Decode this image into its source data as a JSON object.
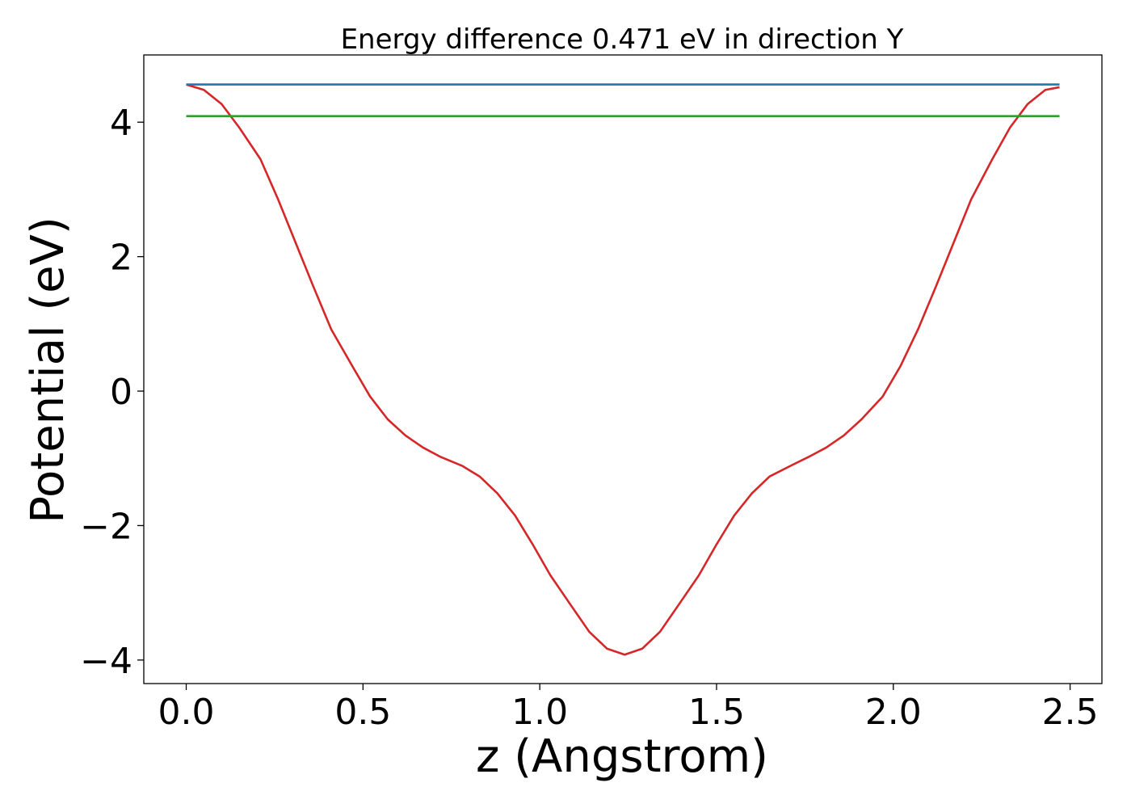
{
  "chart_data": {
    "type": "line",
    "title": "Energy difference 0.471 eV in direction Y",
    "xlabel": "z (Angstrom)",
    "ylabel": "Potential (eV)",
    "xlim": [
      -0.12,
      2.59
    ],
    "ylim": [
      -4.35,
      5.0
    ],
    "xticks": [
      0.0,
      0.5,
      1.0,
      1.5,
      2.0,
      2.5
    ],
    "xtick_labels": [
      "0.0",
      "0.5",
      "1.0",
      "1.5",
      "2.0",
      "2.5"
    ],
    "yticks": [
      -4,
      -2,
      0,
      2,
      4
    ],
    "ytick_labels": [
      "−4",
      "−2",
      "0",
      "2",
      "4"
    ],
    "grid": false,
    "legend": "none",
    "series": [
      {
        "color": "#d62728",
        "x": [
          0.0,
          0.05,
          0.1,
          0.15,
          0.21,
          0.26,
          0.31,
          0.36,
          0.41,
          0.47,
          0.52,
          0.57,
          0.62,
          0.67,
          0.72,
          0.78,
          0.83,
          0.88,
          0.93,
          0.98,
          1.03,
          1.09,
          1.14,
          1.19,
          1.24,
          1.29,
          1.34,
          1.39,
          1.45,
          1.5,
          1.55,
          1.6,
          1.65,
          1.71,
          1.76,
          1.81,
          1.86,
          1.91,
          1.97,
          2.02,
          2.07,
          2.12,
          2.17,
          2.22,
          2.28,
          2.33,
          2.38,
          2.43,
          2.47
        ],
        "y": [
          4.56,
          4.48,
          4.27,
          3.92,
          3.45,
          2.85,
          2.2,
          1.55,
          0.92,
          0.37,
          -0.08,
          -0.42,
          -0.66,
          -0.84,
          -0.98,
          -1.11,
          -1.27,
          -1.52,
          -1.85,
          -2.28,
          -2.74,
          -3.2,
          -3.58,
          -3.83,
          -3.92,
          -3.83,
          -3.58,
          -3.2,
          -2.74,
          -2.28,
          -1.85,
          -1.52,
          -1.27,
          -1.11,
          -0.98,
          -0.84,
          -0.66,
          -0.42,
          -0.08,
          0.37,
          0.92,
          1.55,
          2.2,
          2.85,
          3.45,
          3.92,
          4.27,
          4.48,
          4.52
        ]
      },
      {
        "color": "#1f77b4",
        "x": [
          0.0,
          2.47
        ],
        "y": [
          4.56,
          4.56
        ]
      },
      {
        "color": "#2ca02c",
        "x": [
          0.0,
          2.47
        ],
        "y": [
          4.09,
          4.09
        ]
      }
    ]
  }
}
